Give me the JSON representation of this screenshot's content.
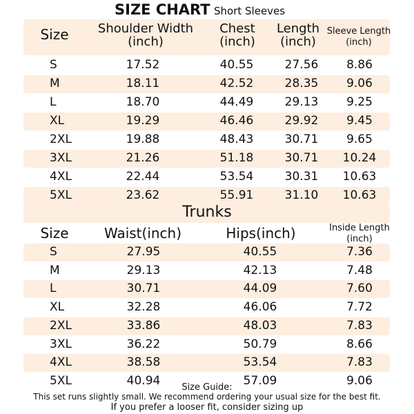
{
  "title": "SIZE CHART",
  "subtitle": "Short Sleeves",
  "shirt": {
    "headers": {
      "size": "Size",
      "shoulder": [
        "Shoulder Width",
        "(inch)"
      ],
      "chest": [
        "Chest",
        "(inch)"
      ],
      "length": [
        "Length",
        "(inch)"
      ],
      "sleeve": [
        "Sleeve Length",
        "(inch)"
      ]
    },
    "rows": [
      [
        "S",
        "17.52",
        "40.55",
        "27.56",
        "8.86"
      ],
      [
        "M",
        "18.11",
        "42.52",
        "28.35",
        "9.06"
      ],
      [
        "L",
        "18.70",
        "44.49",
        "29.13",
        "9.25"
      ],
      [
        "XL",
        "19.29",
        "46.46",
        "29.92",
        "9.45"
      ],
      [
        "2XL",
        "19.88",
        "48.43",
        "30.71",
        "9.65"
      ],
      [
        "3XL",
        "21.26",
        "51.18",
        "30.71",
        "10.24"
      ],
      [
        "4XL",
        "22.44",
        "53.54",
        "30.31",
        "10.63"
      ],
      [
        "5XL",
        "23.62",
        "55.91",
        "31.10",
        "10.63"
      ]
    ]
  },
  "trunks": {
    "title": "Trunks",
    "headers": {
      "size": "Size",
      "waist": "Waist(inch)",
      "hips": "Hips(inch)",
      "inside": [
        "Inside Length",
        "(inch)"
      ]
    },
    "rows": [
      [
        "S",
        "27.95",
        "40.55",
        "7.36"
      ],
      [
        "M",
        "29.13",
        "42.13",
        "7.48"
      ],
      [
        "L",
        "30.71",
        "44.09",
        "7.60"
      ],
      [
        "XL",
        "32.28",
        "46.06",
        "7.72"
      ],
      [
        "2XL",
        "33.86",
        "48.03",
        "7.83"
      ],
      [
        "3XL",
        "36.22",
        "50.79",
        "8.66"
      ],
      [
        "4XL",
        "38.58",
        "53.54",
        "7.83"
      ],
      [
        "5XL",
        "40.94",
        "57.09",
        "9.06"
      ]
    ]
  },
  "guide": {
    "title": "Size Guide:",
    "line1": "This set runs slightly small. We recommend ordering your usual size for the best fit.",
    "line2": "If you prefer a looser fit, consider sizing up"
  },
  "colors": {
    "band": "#fdeee0",
    "text": "#111111"
  }
}
